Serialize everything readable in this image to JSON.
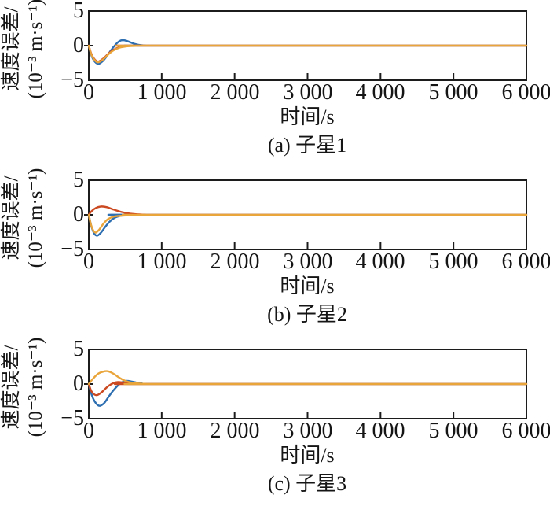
{
  "figure": {
    "background": "#ffffff",
    "axis_color": "#1c1c1c",
    "text_color": "#151515"
  },
  "chart_data": [
    {
      "type": "line",
      "caption": "(a) 子星1",
      "xlabel": "时间/s",
      "ylabel_line1": "速度误差/",
      "ylabel_line2": "(10⁻³ m·s⁻¹)",
      "xlim": [
        0,
        6000
      ],
      "ylim": [
        -5,
        5
      ],
      "grid": false,
      "legend": "none",
      "x_ticks": [
        0,
        1000,
        2000,
        3000,
        4000,
        5000,
        6000
      ],
      "x_ticklabels": [
        "0",
        "1 000",
        "2 000",
        "3 000",
        "4 000",
        "5 000",
        "6 000"
      ],
      "y_ticks": [
        5,
        0,
        -5
      ],
      "y_ticklabels": [
        "5",
        "0",
        "−5"
      ],
      "series": [
        {
          "name": "blue",
          "color": "#2e6fb2",
          "points": [
            [
              0,
              0
            ],
            [
              40,
              -1.5
            ],
            [
              90,
              -2.4
            ],
            [
              140,
              -2.6
            ],
            [
              200,
              -2.15
            ],
            [
              260,
              -1.35
            ],
            [
              310,
              -0.6
            ],
            [
              360,
              0.05
            ],
            [
              420,
              0.65
            ],
            [
              470,
              0.8
            ],
            [
              530,
              0.65
            ],
            [
              600,
              0.35
            ],
            [
              680,
              0.12
            ],
            [
              780,
              0.02
            ],
            [
              900,
              0
            ],
            [
              6000,
              0
            ]
          ]
        },
        {
          "name": "red",
          "color": "#cc4a22",
          "points": [
            [
              0,
              0
            ],
            [
              40,
              -1.3
            ],
            [
              90,
              -2.1
            ],
            [
              135,
              -2.3
            ],
            [
              200,
              -1.85
            ],
            [
              270,
              -1.15
            ],
            [
              340,
              -0.6
            ],
            [
              420,
              -0.25
            ],
            [
              520,
              -0.07
            ],
            [
              650,
              -0.01
            ],
            [
              800,
              0
            ],
            [
              6000,
              0
            ]
          ]
        },
        {
          "name": "orange",
          "color": "#e9a43a",
          "points": [
            [
              0,
              0
            ],
            [
              40,
              -1.4
            ],
            [
              90,
              -2.2
            ],
            [
              135,
              -2.4
            ],
            [
              200,
              -1.95
            ],
            [
              270,
              -1.25
            ],
            [
              340,
              -0.68
            ],
            [
              420,
              -0.3
            ],
            [
              520,
              -0.1
            ],
            [
              650,
              -0.03
            ],
            [
              800,
              0
            ],
            [
              6000,
              0
            ]
          ]
        }
      ]
    },
    {
      "type": "line",
      "caption": "(b) 子星2",
      "xlabel": "时间/s",
      "ylabel_line1": "速度误差/",
      "ylabel_line2": "(10⁻³ m·s⁻¹)",
      "xlim": [
        0,
        6000
      ],
      "ylim": [
        -5,
        5
      ],
      "grid": false,
      "legend": "none",
      "x_ticks": [
        0,
        1000,
        2000,
        3000,
        4000,
        5000,
        6000
      ],
      "x_ticklabels": [
        "0",
        "1 000",
        "2 000",
        "3 000",
        "4 000",
        "5 000",
        "6 000"
      ],
      "y_ticks": [
        5,
        0,
        -5
      ],
      "y_ticklabels": [
        "5",
        "0",
        "−5"
      ],
      "series": [
        {
          "name": "blue",
          "color": "#2e6fb2",
          "points": [
            [
              0,
              0
            ],
            [
              35,
              -1.6
            ],
            [
              75,
              -2.7
            ],
            [
              115,
              -3.0
            ],
            [
              165,
              -2.6
            ],
            [
              225,
              -1.75
            ],
            [
              290,
              -0.95
            ],
            [
              360,
              -0.4
            ],
            [
              450,
              -0.1
            ],
            [
              560,
              0.02
            ],
            [
              700,
              0
            ],
            [
              6000,
              0
            ]
          ]
        },
        {
          "name": "red",
          "color": "#cc4a22",
          "points": [
            [
              0,
              0
            ],
            [
              40,
              0.55
            ],
            [
              100,
              1.0
            ],
            [
              170,
              1.2
            ],
            [
              250,
              1.1
            ],
            [
              330,
              0.8
            ],
            [
              420,
              0.5
            ],
            [
              520,
              0.25
            ],
            [
              630,
              0.1
            ],
            [
              780,
              0.02
            ],
            [
              900,
              0
            ],
            [
              6000,
              0
            ]
          ]
        },
        {
          "name": "orange",
          "color": "#e9a43a",
          "points": [
            [
              0,
              0
            ],
            [
              30,
              -1.4
            ],
            [
              65,
              -2.3
            ],
            [
              100,
              -2.55
            ],
            [
              145,
              -2.1
            ],
            [
              200,
              -1.3
            ],
            [
              260,
              -0.65
            ],
            [
              330,
              -0.3
            ],
            [
              420,
              -0.15
            ],
            [
              550,
              -0.06
            ],
            [
              700,
              -0.01
            ],
            [
              900,
              0
            ],
            [
              6000,
              0
            ]
          ]
        }
      ]
    },
    {
      "type": "line",
      "caption": "(c) 子星3",
      "xlabel": "时间/s",
      "ylabel_line1": "速度误差/",
      "ylabel_line2": "(10⁻³ m·s⁻¹)",
      "xlim": [
        0,
        6000
      ],
      "ylim": [
        -5,
        5
      ],
      "grid": false,
      "legend": "none",
      "x_ticks": [
        0,
        1000,
        2000,
        3000,
        4000,
        5000,
        6000
      ],
      "x_ticklabels": [
        "0",
        "1 000",
        "2 000",
        "3 000",
        "4 000",
        "5 000",
        "6 000"
      ],
      "y_ticks": [
        5,
        0,
        -5
      ],
      "y_ticklabels": [
        "5",
        "0",
        "−5"
      ],
      "series": [
        {
          "name": "blue",
          "color": "#2e6fb2",
          "points": [
            [
              0,
              0
            ],
            [
              45,
              -1.7
            ],
            [
              100,
              -2.8
            ],
            [
              155,
              -3.15
            ],
            [
              215,
              -2.7
            ],
            [
              275,
              -1.8
            ],
            [
              335,
              -0.95
            ],
            [
              395,
              -0.25
            ],
            [
              455,
              0.25
            ],
            [
              515,
              0.45
            ],
            [
              580,
              0.38
            ],
            [
              650,
              0.22
            ],
            [
              730,
              0.08
            ],
            [
              850,
              0.01
            ],
            [
              6000,
              0
            ]
          ]
        },
        {
          "name": "red",
          "color": "#cc4a22",
          "points": [
            [
              0,
              0
            ],
            [
              35,
              -1.0
            ],
            [
              75,
              -1.5
            ],
            [
              115,
              -1.6
            ],
            [
              170,
              -1.25
            ],
            [
              225,
              -0.7
            ],
            [
              280,
              -0.2
            ],
            [
              340,
              0.15
            ],
            [
              400,
              0.28
            ],
            [
              470,
              0.22
            ],
            [
              550,
              0.1
            ],
            [
              650,
              0.02
            ],
            [
              780,
              0
            ],
            [
              6000,
              0
            ]
          ]
        },
        {
          "name": "orange",
          "color": "#e9a43a",
          "points": [
            [
              0,
              0
            ],
            [
              60,
              0.8
            ],
            [
              130,
              1.5
            ],
            [
              200,
              1.8
            ],
            [
              260,
              1.85
            ],
            [
              330,
              1.55
            ],
            [
              400,
              1.05
            ],
            [
              470,
              0.6
            ],
            [
              550,
              0.28
            ],
            [
              650,
              0.1
            ],
            [
              780,
              0.02
            ],
            [
              900,
              0
            ],
            [
              6000,
              0
            ]
          ]
        }
      ]
    }
  ]
}
